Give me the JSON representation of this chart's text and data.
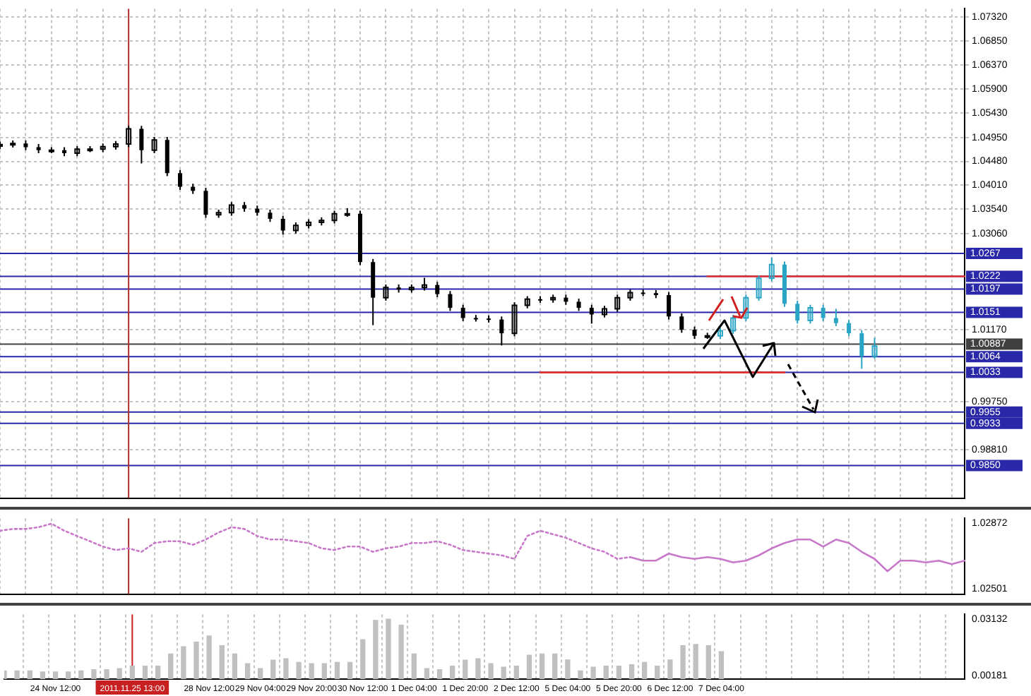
{
  "chart_data": [
    {
      "type": "candlestick",
      "categories": [
        null,
        null,
        null,
        null,
        "24 Nov 12:00",
        null,
        null,
        null,
        null,
        null,
        "2011.11.25 13:00",
        null,
        null,
        null,
        null,
        null,
        "28 Nov 12:00",
        null,
        null,
        null,
        "29 Nov 04:00",
        null,
        null,
        null,
        "29 Nov 20:00",
        null,
        null,
        null,
        "30 Nov 12:00",
        null,
        null,
        null,
        "1 Dec 04:00",
        null,
        null,
        null,
        "1 Dec 20:00",
        null,
        null,
        null,
        "2 Dec 12:00",
        null,
        null,
        null,
        "5 Dec 04:00",
        null,
        null,
        null,
        "5 Dec 20:00",
        null,
        null,
        null,
        "6 Dec 12:00",
        null,
        null,
        null,
        "7 Dec 04:00",
        null,
        null,
        null,
        null,
        null,
        null,
        null,
        null,
        null,
        null,
        null,
        null,
        null,
        null,
        null,
        null,
        null,
        null,
        null
      ],
      "series": [
        {
          "color": "#000000",
          "ohlc": [
            [
              1.0478,
              1.0487,
              1.0472,
              1.0481
            ],
            [
              1.0481,
              1.0489,
              1.0475,
              1.0483
            ],
            [
              1.0483,
              1.0489,
              1.047,
              1.0476
            ],
            [
              1.0476,
              1.0482,
              1.0464,
              1.047
            ],
            [
              1.047,
              1.0476,
              1.0464,
              1.047
            ],
            [
              1.047,
              1.0476,
              1.0458,
              1.0464
            ],
            [
              1.0464,
              1.0478,
              1.0458,
              1.0472
            ],
            [
              1.0472,
              1.0478,
              1.0466,
              1.0472
            ],
            [
              1.0472,
              1.0483,
              1.0466,
              1.0477
            ],
            [
              1.0477,
              1.0488,
              1.0471,
              1.0482
            ],
            [
              1.0482,
              1.0518,
              1.0476,
              1.0512
            ],
            [
              1.0512,
              1.0518,
              1.0444,
              1.047
            ],
            [
              1.047,
              1.0496,
              1.0464,
              1.049
            ],
            [
              1.049,
              1.0496,
              1.0419,
              1.0425
            ],
            [
              1.0425,
              1.0431,
              1.0392,
              1.0398
            ],
            [
              1.0398,
              1.0404,
              1.0384,
              1.039
            ],
            [
              1.039,
              1.0396,
              1.0337,
              1.0343
            ],
            [
              1.0343,
              1.0353,
              1.0337,
              1.0347
            ],
            [
              1.0347,
              1.0368,
              1.0341,
              1.0362
            ],
            [
              1.0362,
              1.0368,
              1.0349,
              1.0355
            ],
            [
              1.0355,
              1.0361,
              1.0341,
              1.0347
            ],
            [
              1.0347,
              1.0353,
              1.0329,
              1.0335
            ],
            [
              1.0335,
              1.0341,
              1.0304,
              1.0312
            ],
            [
              1.0312,
              1.0328,
              1.0306,
              1.0322
            ],
            [
              1.0322,
              1.0334,
              1.0316,
              1.0328
            ],
            [
              1.0328,
              1.0338,
              1.0322,
              1.0332
            ],
            [
              1.0332,
              1.0351,
              1.0326,
              1.0345
            ],
            [
              1.0345,
              1.0356,
              1.0339,
              1.0345
            ],
            [
              1.0345,
              1.0351,
              1.0244,
              1.025
            ],
            [
              1.025,
              1.0256,
              1.0126,
              1.018
            ],
            [
              1.018,
              1.0206,
              1.0174,
              1.02
            ],
            [
              1.02,
              1.0206,
              1.019,
              1.0196
            ],
            [
              1.0196,
              1.0206,
              1.019,
              1.02
            ],
            [
              1.02,
              1.0219,
              1.0194,
              1.0205
            ],
            [
              1.0205,
              1.0211,
              1.0181,
              1.0187
            ],
            [
              1.0187,
              1.0193,
              1.0154,
              1.016
            ],
            [
              1.016,
              1.0166,
              1.0134,
              1.014
            ],
            [
              1.014,
              1.0146,
              1.0133,
              1.0139
            ],
            [
              1.0139,
              1.0145,
              1.0131,
              1.0137
            ],
            [
              1.0137,
              1.0143,
              1.0086,
              1.011
            ],
            [
              1.011,
              1.0171,
              1.0104,
              1.0165
            ],
            [
              1.0165,
              1.0183,
              1.0159,
              1.0177
            ],
            [
              1.0177,
              1.0183,
              1.017,
              1.0176
            ],
            [
              1.0176,
              1.0186,
              1.017,
              1.018
            ],
            [
              1.018,
              1.0186,
              1.0166,
              1.0172
            ],
            [
              1.0172,
              1.0178,
              1.0154,
              1.016
            ],
            [
              1.016,
              1.0166,
              1.0129,
              1.0147
            ],
            [
              1.0147,
              1.0164,
              1.0141,
              1.0158
            ],
            [
              1.0158,
              1.0186,
              1.0152,
              1.018
            ],
            [
              1.018,
              1.0196,
              1.0174,
              1.019
            ],
            [
              1.019,
              1.0196,
              1.0183,
              1.0189
            ],
            [
              1.0189,
              1.0195,
              1.0179,
              1.0185
            ],
            [
              1.0185,
              1.0191,
              1.0137,
              1.0143
            ],
            [
              1.0143,
              1.0149,
              1.0111,
              1.0117
            ],
            [
              1.0117,
              1.0123,
              1.0099,
              1.0105
            ],
            [
              1.0105,
              1.0111,
              1.0099,
              1.0105
            ],
            null,
            null,
            null,
            null,
            null,
            null,
            null,
            null,
            null,
            null,
            null,
            null,
            null,
            null,
            null,
            null,
            null,
            null,
            null,
            null
          ]
        },
        {
          "color": "#2aa4c4",
          "ohlc": [
            null,
            null,
            null,
            null,
            null,
            null,
            null,
            null,
            null,
            null,
            null,
            null,
            null,
            null,
            null,
            null,
            null,
            null,
            null,
            null,
            null,
            null,
            null,
            null,
            null,
            null,
            null,
            null,
            null,
            null,
            null,
            null,
            null,
            null,
            null,
            null,
            null,
            null,
            null,
            null,
            null,
            null,
            null,
            null,
            null,
            null,
            null,
            null,
            null,
            null,
            null,
            null,
            null,
            null,
            null,
            null,
            [
              1.0105,
              1.0121,
              1.0099,
              1.0115
            ],
            [
              1.0115,
              1.0146,
              1.0109,
              1.014
            ],
            [
              1.014,
              1.0186,
              1.0134,
              1.018
            ],
            [
              1.018,
              1.0224,
              1.0174,
              1.0218
            ],
            [
              1.0218,
              1.0259,
              1.0212,
              1.0245
            ],
            [
              1.0245,
              1.0251,
              1.0162,
              1.0168
            ],
            [
              1.0168,
              1.0174,
              1.0129,
              1.0135
            ],
            [
              1.0135,
              1.0166,
              1.0129,
              1.016
            ],
            [
              1.016,
              1.0166,
              1.0134,
              1.014
            ],
            [
              1.014,
              1.0158,
              1.0124,
              1.013
            ],
            [
              1.013,
              1.0136,
              1.0104,
              1.011
            ],
            [
              1.011,
              1.0116,
              1.004,
              1.0065
            ],
            [
              1.0065,
              1.0101,
              1.006,
              1.0085
            ],
            null,
            null,
            null,
            null,
            null,
            null,
            null
          ]
        },
        {
          "type": "line",
          "color": "#e03030",
          "values": [
            null,
            null,
            null,
            null,
            null,
            null,
            null,
            null,
            null,
            null,
            null,
            null,
            null,
            null,
            null,
            null,
            null,
            null,
            null,
            null,
            null,
            null,
            null,
            null,
            null,
            null,
            null,
            null,
            null,
            null,
            null,
            null,
            null,
            null,
            null,
            null,
            null,
            null,
            null,
            null,
            null,
            null,
            1.0033,
            1.0033,
            1.0033,
            1.0033,
            1.0033,
            1.0033,
            1.0033,
            1.0033,
            1.0033,
            1.0033,
            1.0033,
            1.0033,
            1.0033,
            1.0033,
            1.0033,
            1.0033,
            1.0033,
            1.0033,
            1.0033,
            1.0033,
            null,
            null,
            null,
            null,
            null,
            null,
            null,
            null,
            null,
            null,
            null,
            null,
            null,
            null
          ]
        },
        {
          "type": "line",
          "color": "#e03030",
          "values": [
            null,
            null,
            null,
            null,
            null,
            null,
            null,
            null,
            null,
            null,
            null,
            null,
            null,
            null,
            null,
            null,
            null,
            null,
            null,
            null,
            null,
            null,
            null,
            null,
            null,
            null,
            null,
            null,
            null,
            null,
            null,
            null,
            null,
            null,
            null,
            null,
            null,
            null,
            null,
            null,
            null,
            null,
            null,
            null,
            null,
            null,
            null,
            null,
            null,
            null,
            null,
            null,
            null,
            null,
            null,
            1.0222,
            1.0222,
            1.0222,
            1.0222,
            1.0222,
            1.0222,
            1.0222,
            1.0222,
            1.0222,
            1.0222,
            1.0222,
            1.0222,
            1.0222,
            1.0222,
            1.0222,
            1.0222,
            1.0222,
            1.0222,
            1.0222,
            1.0222,
            1.0222
          ]
        }
      ],
      "ylim": [
        0.9786,
        1.0748
      ],
      "yticks": [
        {
          "value": 1.0732,
          "label": "1.07320"
        },
        {
          "value": 1.0685,
          "label": "1.06850"
        },
        {
          "value": 1.0637,
          "label": "1.06370"
        },
        {
          "value": 1.059,
          "label": "1.05900"
        },
        {
          "value": 1.0543,
          "label": "1.05430"
        },
        {
          "value": 1.0495,
          "label": "1.04950"
        },
        {
          "value": 1.0448,
          "label": "1.04480"
        },
        {
          "value": 1.0401,
          "label": "1.04010"
        },
        {
          "value": 1.0354,
          "label": "1.03540"
        },
        {
          "value": 1.0306,
          "label": "1.03060"
        },
        {
          "value": 1.0117,
          "label": "1.01170"
        },
        {
          "value": 0.9975,
          "label": "0.99750"
        },
        {
          "value": 0.9881,
          "label": "0.98810"
        }
      ],
      "tick_labels": "y",
      "grid": true,
      "ref_lines": [
        {
          "axis": "y",
          "value": 1.0267,
          "label": "1.0267",
          "color": "#2828a8"
        },
        {
          "axis": "y",
          "value": 1.0222,
          "label": "1.0222",
          "color": "#2828a8"
        },
        {
          "axis": "y",
          "value": 1.0197,
          "label": "1.0197",
          "color": "#2828a8"
        },
        {
          "axis": "y",
          "value": 1.0151,
          "label": "1.0151",
          "color": "#2828a8"
        },
        {
          "axis": "y",
          "value": 1.00887,
          "label": "1.00887",
          "color": "#404040"
        },
        {
          "axis": "y",
          "value": 1.0064,
          "label": "1.0064",
          "color": "#2828a8"
        },
        {
          "axis": "y",
          "value": 1.0033,
          "label": "1.0033",
          "color": "#2828a8"
        },
        {
          "axis": "y",
          "value": 0.9955,
          "label": "0.9955",
          "color": "#2828a8"
        },
        {
          "axis": "y",
          "value": 0.9933,
          "label": "0.9933",
          "color": "#2828a8"
        },
        {
          "axis": "y",
          "value": 0.985,
          "label": "0.9850",
          "color": "#2828a8"
        },
        {
          "axis": "x",
          "value": "2011.11.25 13:00",
          "color": "#b03030"
        }
      ]
    },
    {
      "type": "line",
      "marker": "none",
      "categories": [
        null,
        null,
        null,
        null,
        "24 Nov 12:00",
        null,
        null,
        null,
        null,
        null,
        "2011.11.25 13:00",
        null,
        null,
        null,
        null,
        null,
        "28 Nov 12:00",
        null,
        null,
        null,
        "29 Nov 04:00",
        null,
        null,
        null,
        "29 Nov 20:00",
        null,
        null,
        null,
        "30 Nov 12:00",
        null,
        null,
        null,
        "1 Dec 04:00",
        null,
        null,
        null,
        "1 Dec 20:00",
        null,
        null,
        null,
        "2 Dec 12:00",
        null,
        null,
        null,
        "5 Dec 04:00",
        null,
        null,
        null,
        "5 Dec 20:00",
        null,
        null,
        null,
        "6 Dec 12:00",
        null,
        null,
        null,
        "7 Dec 04:00",
        null,
        null,
        null,
        null,
        null,
        null,
        null,
        null,
        null,
        null,
        null,
        null,
        null,
        null,
        null,
        null,
        null,
        null,
        null
      ],
      "series": [
        {
          "color": "#c878c8",
          "line_style": "dotted",
          "values": [
            1.0283,
            1.0284,
            1.0284,
            1.0285,
            1.0287,
            1.0283,
            1.028,
            1.0277,
            1.0274,
            1.0272,
            1.0273,
            1.0271,
            1.0276,
            1.0277,
            1.0277,
            1.0275,
            1.0278,
            1.0282,
            1.0285,
            1.0284,
            1.028,
            1.0278,
            1.0278,
            1.0277,
            1.0276,
            1.0273,
            1.0272,
            1.0274,
            1.0274,
            1.0271,
            1.0273,
            1.0274,
            1.0276,
            1.0276,
            1.0277,
            1.0275,
            1.0272,
            1.0271,
            1.027,
            1.0269,
            1.0267,
            1.028,
            1.0283,
            1.0281,
            1.0279,
            1.0276,
            1.0273,
            1.0271,
            1.0267,
            1.0268,
            null,
            null,
            null,
            null,
            null,
            null,
            null,
            null,
            null,
            null,
            null,
            null,
            null,
            null,
            null,
            null,
            null,
            null,
            null,
            null,
            null,
            null,
            null,
            null,
            null,
            null
          ]
        },
        {
          "color": "#c878c8",
          "line_style": "solid",
          "values": [
            null,
            null,
            null,
            null,
            null,
            null,
            null,
            null,
            null,
            null,
            null,
            null,
            null,
            null,
            null,
            null,
            null,
            null,
            null,
            null,
            null,
            null,
            null,
            null,
            null,
            null,
            null,
            null,
            null,
            null,
            null,
            null,
            null,
            null,
            null,
            null,
            null,
            null,
            null,
            null,
            null,
            null,
            null,
            null,
            null,
            null,
            null,
            null,
            null,
            1.0268,
            1.0266,
            1.0266,
            1.027,
            1.0268,
            1.0267,
            1.0268,
            1.0267,
            1.0265,
            1.0266,
            1.0269,
            1.0273,
            1.0276,
            1.0278,
            1.0278,
            1.0274,
            1.0278,
            1.0276,
            1.0271,
            1.0267,
            1.026,
            1.0266,
            1.0266,
            1.0265,
            1.0266,
            1.0264,
            1.0266
          ]
        }
      ],
      "ylim": [
        1.0247,
        1.029
      ],
      "yticks": [
        {
          "value": 1.02872,
          "label": "1.02872"
        },
        {
          "value": 1.02501,
          "label": "1.02501"
        }
      ],
      "tick_labels": "y",
      "grid": "x",
      "ref_lines": [
        {
          "axis": "x",
          "value": "2011.11.25 13:00",
          "color": "#b03030"
        }
      ]
    },
    {
      "type": "bar",
      "color": "#c0c0c0",
      "categories": [
        null,
        null,
        null,
        null,
        "24 Nov 12:00",
        null,
        null,
        null,
        null,
        null,
        "2011.11.25 13:00",
        null,
        null,
        null,
        null,
        null,
        "28 Nov 12:00",
        null,
        null,
        null,
        "29 Nov 04:00",
        null,
        null,
        null,
        "29 Nov 20:00",
        null,
        null,
        null,
        "30 Nov 12:00",
        null,
        null,
        null,
        "1 Dec 04:00",
        null,
        null,
        null,
        "1 Dec 20:00",
        null,
        null,
        null,
        "2 Dec 12:00",
        null,
        null,
        null,
        "5 Dec 04:00",
        null,
        null,
        null,
        "5 Dec 20:00",
        null,
        null,
        null,
        "6 Dec 12:00",
        null,
        null,
        null,
        "7 Dec 04:00",
        null,
        null,
        null,
        null,
        null,
        null,
        null,
        null,
        null,
        null,
        null,
        null,
        null,
        null,
        null,
        null,
        null,
        null,
        null
      ],
      "values": [
        0.0043,
        0.0043,
        0.0043,
        0.0037,
        0.0037,
        0.0037,
        0.0043,
        0.0049,
        0.0049,
        0.0055,
        0.0068,
        0.0068,
        0.0068,
        0.0131,
        0.0169,
        0.0193,
        0.0225,
        0.0175,
        0.0131,
        0.0081,
        0.0055,
        0.0099,
        0.0106,
        0.0087,
        0.0081,
        0.0081,
        0.0087,
        0.0087,
        0.0206,
        0.0307,
        0.0313,
        0.0282,
        0.0131,
        0.0055,
        0.0049,
        0.0068,
        0.0099,
        0.0106,
        0.0081,
        0.0062,
        0.0068,
        0.0125,
        0.0131,
        0.0131,
        0.01,
        0.0043,
        0.0062,
        0.0068,
        0.0068,
        0.0075,
        0.0087,
        0.0068,
        0.01,
        0.0175,
        0.0181,
        0.0175,
        0.0143,
        null,
        null,
        null,
        null,
        null,
        null,
        null,
        null,
        null,
        null,
        null,
        null,
        null,
        null,
        null,
        null,
        null,
        null,
        null
      ],
      "ylim": [
        0,
        0.0338
      ],
      "yticks": [
        {
          "value": 0.03132,
          "label": "0.03132"
        },
        {
          "value": 0.00181,
          "label": "0.00181"
        }
      ],
      "grid": "x",
      "ref_lines": [
        {
          "axis": "x",
          "value": "2011.11.25 13:00",
          "color": "#c82020"
        }
      ]
    }
  ]
}
